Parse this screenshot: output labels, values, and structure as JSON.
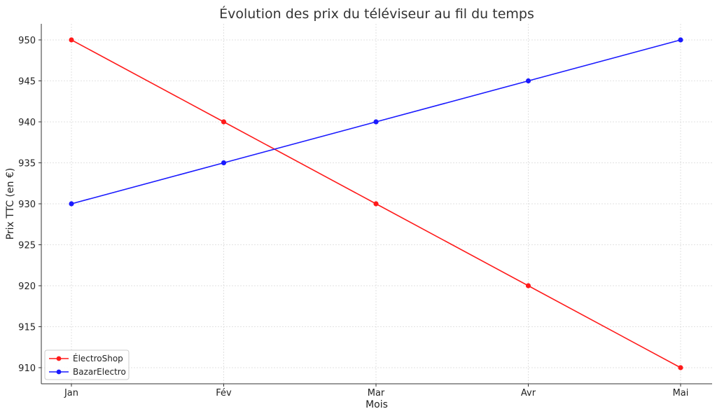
{
  "chart_data": {
    "type": "line",
    "title": "Évolution des prix du téléviseur au fil du temps",
    "xlabel": "Mois",
    "ylabel": "Prix TTC (en €)",
    "categories": [
      "Jan",
      "Fév",
      "Mar",
      "Avr",
      "Mai"
    ],
    "ylim": [
      908,
      952
    ],
    "yticks": [
      910,
      915,
      920,
      925,
      930,
      935,
      940,
      945,
      950
    ],
    "grid": true,
    "legend_position": "lower-left",
    "series": [
      {
        "name": "ÉlectroShop",
        "color": "#ff1a1a",
        "marker": "circle",
        "values": [
          950,
          940,
          930,
          920,
          910
        ]
      },
      {
        "name": "BazarElectro",
        "color": "#1a1aff",
        "marker": "circle",
        "values": [
          930,
          935,
          940,
          945,
          950
        ]
      }
    ]
  }
}
